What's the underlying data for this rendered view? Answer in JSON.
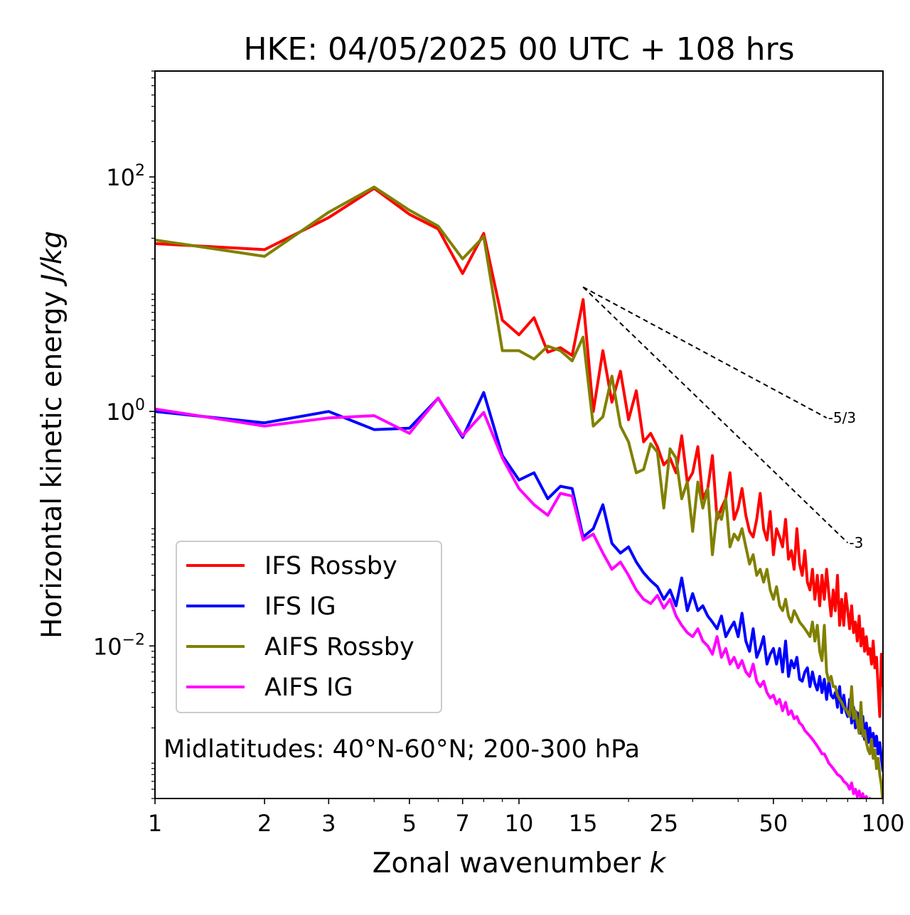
{
  "chart_data": {
    "type": "line",
    "title": "HKE: 04/05/2025 00 UTC + 108 hrs",
    "xlabel": "Zonal wavenumber",
    "xlabel_var": "k",
    "ylabel": "Horizontal kinetic energy",
    "ylabel_unit": "J/kg",
    "xscale": "log",
    "yscale": "log",
    "xlim": [
      1,
      100
    ],
    "ylim": [
      0.0005,
      800
    ],
    "xticks": [
      1,
      2,
      3,
      5,
      7,
      10,
      15,
      25,
      50,
      100
    ],
    "xtick_labels": [
      "1",
      "2",
      "3",
      "5",
      "7",
      "10",
      "15",
      "25",
      "50",
      "100"
    ],
    "yticks": [
      0.01,
      1,
      100
    ],
    "ytick_labels": [
      {
        "base": "10",
        "exp": "−2"
      },
      {
        "base": "10",
        "exp": "0"
      },
      {
        "base": "10",
        "exp": "2"
      }
    ],
    "legend_position": "lower-left",
    "annotation": "Midlatitudes: 40°N-60°N; 200-300 hPa",
    "reference_lines": [
      {
        "label": "-5/3",
        "slope": -1.6667,
        "x": [
          15,
          70
        ],
        "y0": 11.5,
        "color": "#000000",
        "style": "dashed"
      },
      {
        "label": "-3",
        "slope": -3,
        "x": [
          15,
          80
        ],
        "y0": 11.5,
        "color": "#000000",
        "style": "dashed"
      }
    ],
    "series": [
      {
        "name": "IFS Rossby",
        "color": "#ff0000",
        "x": [
          1,
          2,
          3,
          4,
          5,
          6,
          7,
          8,
          9,
          10,
          11,
          12,
          13,
          14,
          15,
          16,
          17,
          18,
          19,
          20,
          21,
          22,
          23,
          24,
          25,
          26,
          27,
          28,
          29,
          30,
          31,
          32,
          33,
          34,
          35,
          36,
          37,
          38,
          39,
          40,
          41,
          42,
          43,
          44,
          45,
          46,
          47,
          48,
          49,
          50,
          51,
          52,
          53,
          54,
          55,
          56,
          57,
          58,
          59,
          60,
          61,
          62,
          63,
          64,
          65,
          66,
          67,
          68,
          69,
          70,
          71,
          72,
          73,
          74,
          75,
          76,
          77,
          78,
          79,
          80,
          81,
          82,
          83,
          84,
          85,
          86,
          87,
          88,
          89,
          90,
          91,
          92,
          93,
          94,
          95,
          96,
          97,
          98,
          99,
          100
        ],
        "values": [
          27,
          24,
          45,
          80,
          48,
          36,
          15,
          33,
          6.0,
          4.5,
          6.3,
          3.2,
          3.5,
          3.0,
          9.0,
          1.0,
          3.3,
          1.2,
          2.2,
          0.85,
          1.5,
          0.55,
          0.65,
          0.5,
          0.35,
          0.4,
          0.3,
          0.62,
          0.25,
          0.3,
          0.5,
          0.18,
          0.22,
          0.42,
          0.12,
          0.15,
          0.18,
          0.3,
          0.12,
          0.15,
          0.22,
          0.13,
          0.095,
          0.085,
          0.12,
          0.2,
          0.1,
          0.08,
          0.14,
          0.06,
          0.1,
          0.085,
          0.07,
          0.12,
          0.055,
          0.065,
          0.045,
          0.1,
          0.05,
          0.04,
          0.065,
          0.035,
          0.03,
          0.045,
          0.025,
          0.04,
          0.022,
          0.04,
          0.025,
          0.045,
          0.028,
          0.018,
          0.03,
          0.02,
          0.04,
          0.015,
          0.025,
          0.015,
          0.028,
          0.02,
          0.014,
          0.022,
          0.013,
          0.016,
          0.011,
          0.018,
          0.01,
          0.014,
          0.009,
          0.012,
          0.0085,
          0.0095,
          0.007,
          0.011,
          0.0065,
          0.008,
          0.0045,
          0.0025,
          0.0085,
          0.0045
        ]
      },
      {
        "name": "IFS IG",
        "color": "#0000ff",
        "x": [
          1,
          2,
          3,
          4,
          5,
          6,
          7,
          8,
          9,
          10,
          11,
          12,
          13,
          14,
          15,
          16,
          17,
          18,
          19,
          20,
          21,
          22,
          23,
          24,
          25,
          26,
          27,
          28,
          29,
          30,
          31,
          32,
          33,
          34,
          35,
          36,
          37,
          38,
          39,
          40,
          41,
          42,
          43,
          44,
          45,
          46,
          47,
          48,
          49,
          50,
          51,
          52,
          53,
          54,
          55,
          56,
          57,
          58,
          59,
          60,
          61,
          62,
          63,
          64,
          65,
          66,
          67,
          68,
          69,
          70,
          71,
          72,
          73,
          74,
          75,
          76,
          77,
          78,
          79,
          80,
          81,
          82,
          83,
          84,
          85,
          86,
          87,
          88,
          89,
          90,
          91,
          92,
          93,
          94,
          95,
          96,
          97,
          98,
          99,
          100
        ],
        "values": [
          1.0,
          0.8,
          1.0,
          0.7,
          0.72,
          1.3,
          0.6,
          1.45,
          0.42,
          0.26,
          0.3,
          0.18,
          0.23,
          0.22,
          0.085,
          0.1,
          0.16,
          0.075,
          0.062,
          0.07,
          0.052,
          0.042,
          0.036,
          0.032,
          0.025,
          0.03,
          0.022,
          0.038,
          0.02,
          0.028,
          0.02,
          0.022,
          0.018,
          0.016,
          0.014,
          0.018,
          0.012,
          0.014,
          0.016,
          0.012,
          0.019,
          0.011,
          0.009,
          0.014,
          0.008,
          0.0095,
          0.012,
          0.007,
          0.0085,
          0.0095,
          0.007,
          0.0095,
          0.006,
          0.011,
          0.0055,
          0.0075,
          0.0065,
          0.008,
          0.0052,
          0.005,
          0.006,
          0.0065,
          0.0045,
          0.006,
          0.0048,
          0.0042,
          0.0055,
          0.004,
          0.0052,
          0.0035,
          0.005,
          0.0038,
          0.0036,
          0.004,
          0.003,
          0.0045,
          0.0027,
          0.0038,
          0.0028,
          0.0025,
          0.0035,
          0.0022,
          0.003,
          0.002,
          0.0027,
          0.0023,
          0.0018,
          0.0025,
          0.0016,
          0.0022,
          0.0015,
          0.002,
          0.0013,
          0.0018,
          0.0014,
          0.0017,
          0.0012,
          0.0015,
          0.0011,
          0.00085
        ]
      },
      {
        "name": "AIFS Rossby",
        "color": "#808000",
        "x": [
          1,
          2,
          3,
          4,
          5,
          6,
          7,
          8,
          9,
          10,
          11,
          12,
          13,
          14,
          15,
          16,
          17,
          18,
          19,
          20,
          21,
          22,
          23,
          24,
          25,
          26,
          27,
          28,
          29,
          30,
          31,
          32,
          33,
          34,
          35,
          36,
          37,
          38,
          39,
          40,
          41,
          42,
          43,
          44,
          45,
          46,
          47,
          48,
          49,
          50,
          51,
          52,
          53,
          54,
          55,
          56,
          57,
          58,
          59,
          60,
          61,
          62,
          63,
          64,
          65,
          66,
          67,
          68,
          69,
          70,
          71,
          72,
          73,
          74,
          75,
          76,
          77,
          78,
          79,
          80,
          81,
          82,
          83,
          84,
          85,
          86,
          87,
          88,
          89,
          90,
          91,
          92,
          93,
          94,
          95,
          96,
          97,
          98,
          99,
          100
        ],
        "values": [
          29,
          21,
          50,
          82,
          52,
          38,
          20,
          31,
          3.3,
          3.3,
          2.8,
          3.6,
          3.3,
          2.7,
          4.3,
          0.75,
          0.9,
          2.0,
          0.75,
          0.55,
          0.3,
          0.32,
          0.53,
          0.45,
          0.15,
          0.48,
          0.4,
          0.18,
          0.25,
          0.095,
          0.25,
          0.15,
          0.22,
          0.06,
          0.14,
          0.12,
          0.18,
          0.07,
          0.09,
          0.08,
          0.1,
          0.07,
          0.05,
          0.06,
          0.04,
          0.045,
          0.035,
          0.045,
          0.03,
          0.025,
          0.032,
          0.022,
          0.02,
          0.025,
          0.018,
          0.016,
          0.02,
          0.018,
          0.016,
          0.015,
          0.014,
          0.013,
          0.012,
          0.016,
          0.011,
          0.015,
          0.009,
          0.0075,
          0.015,
          0.006,
          0.005,
          0.0055,
          0.0045,
          0.0045,
          0.0038,
          0.0035,
          0.0033,
          0.003,
          0.0029,
          0.0027,
          0.0025,
          0.0045,
          0.0024,
          0.0028,
          0.0022,
          0.0018,
          0.0033,
          0.0017,
          0.0019,
          0.0015,
          0.0013,
          0.0012,
          0.0016,
          0.0011,
          0.0013,
          0.0009,
          0.0011,
          0.0008,
          0.00065,
          0.00045
        ]
      },
      {
        "name": "AIFS IG",
        "color": "#ff00ff",
        "x": [
          1,
          2,
          3,
          4,
          5,
          6,
          7,
          8,
          9,
          10,
          11,
          12,
          13,
          14,
          15,
          16,
          17,
          18,
          19,
          20,
          21,
          22,
          23,
          24,
          25,
          26,
          27,
          28,
          29,
          30,
          31,
          32,
          33,
          34,
          35,
          36,
          37,
          38,
          39,
          40,
          41,
          42,
          43,
          44,
          45,
          46,
          47,
          48,
          49,
          50,
          51,
          52,
          53,
          54,
          55,
          56,
          57,
          58,
          59,
          60,
          61,
          62,
          63,
          64,
          65,
          66,
          67,
          68,
          69,
          70,
          71,
          72,
          73,
          74,
          75,
          76,
          77,
          78,
          79,
          80,
          81,
          82,
          83,
          84,
          85,
          86,
          87,
          88,
          89,
          90,
          91,
          92,
          93,
          94,
          95,
          96,
          97,
          98,
          99,
          100
        ],
        "values": [
          1.05,
          0.75,
          0.88,
          0.92,
          0.65,
          1.3,
          0.62,
          0.98,
          0.4,
          0.22,
          0.16,
          0.13,
          0.2,
          0.19,
          0.08,
          0.09,
          0.062,
          0.045,
          0.052,
          0.04,
          0.03,
          0.025,
          0.023,
          0.027,
          0.021,
          0.025,
          0.018,
          0.015,
          0.013,
          0.012,
          0.014,
          0.011,
          0.01,
          0.0085,
          0.012,
          0.008,
          0.0095,
          0.007,
          0.008,
          0.0065,
          0.0075,
          0.006,
          0.0055,
          0.007,
          0.005,
          0.0045,
          0.005,
          0.004,
          0.0036,
          0.0038,
          0.0032,
          0.0035,
          0.0028,
          0.0033,
          0.0026,
          0.0028,
          0.0024,
          0.0025,
          0.0022,
          0.0021,
          0.0019,
          0.0018,
          0.0017,
          0.0016,
          0.0015,
          0.0014,
          0.0013,
          0.0012,
          0.0012,
          0.0011,
          0.001,
          0.00095,
          0.0009,
          0.00085,
          0.0008,
          0.00078,
          0.00075,
          0.0007,
          0.00068,
          0.00065,
          0.0006,
          0.00068,
          0.00055,
          0.0006,
          0.00052,
          0.00058,
          0.0005,
          0.00055,
          0.00048,
          0.00052,
          0.00046,
          0.0005,
          0.00044,
          0.00048,
          0.00043,
          0.00046,
          0.00042,
          0.00044,
          0.0004,
          0.00039
        ]
      }
    ]
  }
}
